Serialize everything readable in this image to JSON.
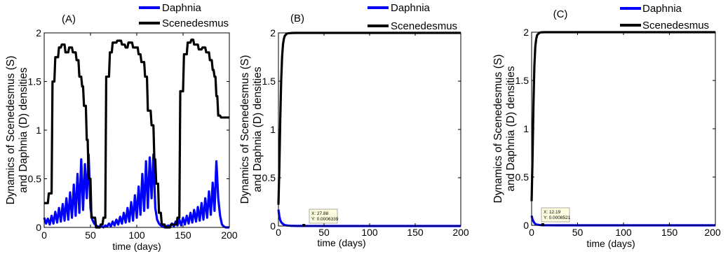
{
  "chart_data": [
    {
      "type": "line",
      "panel_label": "(A)",
      "xlabel": "time (days)",
      "ylabel_line1": "Dynamics of Scenedesmus (S)",
      "ylabel_line2": "and Daphnia (D) densities",
      "xlim": [
        0,
        200
      ],
      "ylim": [
        0,
        2
      ],
      "xticks": [
        0,
        50,
        100,
        150,
        200
      ],
      "yticks": [
        0,
        0.5,
        1,
        1.5,
        2
      ],
      "xtick_labels": [
        "0",
        "50",
        "100",
        "150",
        "200"
      ],
      "ytick_labels": [
        "0",
        "0.5",
        "1",
        "1.5",
        "2"
      ],
      "grid": false,
      "legend_position": "top-right-outside",
      "series": [
        {
          "name": "Daphnia",
          "color": "#0000ff",
          "x": [
            0,
            2,
            4,
            6,
            8,
            10,
            12,
            14,
            16,
            18,
            20,
            22,
            24,
            26,
            28,
            30,
            32,
            34,
            36,
            38,
            40,
            42,
            44,
            46,
            48,
            50,
            52,
            54,
            56,
            58,
            60,
            62,
            64,
            66,
            68,
            70,
            72,
            74,
            76,
            78,
            80,
            82,
            84,
            86,
            88,
            90,
            92,
            94,
            96,
            98,
            100,
            102,
            104,
            106,
            108,
            110,
            112,
            114,
            116,
            118,
            120,
            122,
            124,
            126,
            128,
            130,
            132,
            134,
            136,
            138,
            140,
            142,
            144,
            146,
            148,
            150,
            152,
            154,
            156,
            158,
            160,
            162,
            164,
            166,
            168,
            170,
            172,
            174,
            176,
            178,
            180,
            182,
            184,
            186,
            188,
            190,
            192,
            194,
            196,
            198,
            200
          ],
          "y": [
            0.1,
            0.04,
            0.09,
            0.03,
            0.12,
            0.04,
            0.16,
            0.05,
            0.2,
            0.06,
            0.24,
            0.07,
            0.3,
            0.08,
            0.36,
            0.1,
            0.44,
            0.12,
            0.55,
            0.15,
            0.7,
            0.18,
            0.65,
            0.3,
            0.75,
            0.2,
            0.08,
            0.04,
            0.02,
            0.01,
            0.0,
            0.01,
            0.0,
            0.02,
            0.01,
            0.04,
            0.01,
            0.06,
            0.02,
            0.08,
            0.03,
            0.11,
            0.04,
            0.15,
            0.05,
            0.2,
            0.06,
            0.26,
            0.07,
            0.33,
            0.1,
            0.42,
            0.13,
            0.55,
            0.17,
            0.68,
            0.2,
            0.72,
            0.3,
            0.75,
            0.2,
            0.08,
            0.04,
            0.02,
            0.01,
            0.0,
            0.01,
            0.02,
            0.01,
            0.04,
            0.01,
            0.06,
            0.02,
            0.08,
            0.02,
            0.1,
            0.03,
            0.12,
            0.04,
            0.15,
            0.05,
            0.18,
            0.06,
            0.21,
            0.07,
            0.25,
            0.08,
            0.3,
            0.1,
            0.37,
            0.13,
            0.46,
            0.17,
            0.68,
            0.3,
            0.12,
            0.03,
            0.01,
            0.0,
            0.0,
            0.0
          ]
        },
        {
          "name": "Scenedesmus",
          "color": "#000000",
          "x": [
            0,
            4,
            5,
            8,
            9,
            11,
            12,
            15,
            16,
            18,
            19,
            22,
            23,
            26,
            27,
            30,
            31,
            34,
            35,
            37,
            38,
            40,
            41,
            42,
            43,
            45,
            46,
            47,
            48,
            50,
            51,
            55,
            56,
            60,
            61,
            63,
            64,
            66,
            67,
            70,
            71,
            73,
            74,
            78,
            79,
            83,
            84,
            87,
            88,
            90,
            91,
            95,
            96,
            101,
            102,
            104,
            105,
            108,
            109,
            111,
            112,
            115,
            116,
            118,
            119,
            120,
            121,
            123,
            124,
            126,
            127,
            130,
            131,
            136,
            137,
            143,
            144,
            146,
            147,
            150,
            151,
            154,
            155,
            158,
            159,
            161,
            162,
            166,
            167,
            170,
            171,
            174,
            175,
            178,
            179,
            181,
            182,
            183,
            184,
            185,
            186,
            187,
            188,
            190,
            191,
            195,
            196,
            200
          ],
          "y": [
            0.25,
            0.25,
            0.35,
            0.35,
            1.5,
            1.5,
            1.75,
            1.75,
            1.85,
            1.85,
            1.88,
            1.88,
            1.8,
            1.8,
            1.85,
            1.85,
            1.8,
            1.8,
            1.72,
            1.72,
            1.55,
            1.55,
            1.45,
            1.45,
            1.25,
            1.25,
            0.9,
            0.9,
            0.5,
            0.5,
            0.1,
            0.1,
            0.0,
            0.0,
            0.03,
            0.03,
            0.1,
            0.1,
            1.55,
            1.55,
            1.8,
            1.8,
            1.9,
            1.9,
            1.92,
            1.92,
            1.88,
            1.88,
            1.85,
            1.85,
            1.9,
            1.9,
            1.85,
            1.85,
            1.78,
            1.78,
            1.7,
            1.7,
            1.55,
            1.55,
            1.2,
            1.2,
            1.05,
            1.05,
            0.7,
            0.7,
            0.45,
            0.45,
            0.15,
            0.15,
            0.03,
            0.03,
            0.0,
            0.0,
            0.03,
            0.03,
            0.1,
            0.1,
            1.4,
            1.4,
            1.78,
            1.78,
            1.9,
            1.9,
            1.93,
            1.93,
            1.88,
            1.88,
            1.83,
            1.83,
            1.85,
            1.85,
            1.8,
            1.8,
            1.72,
            1.72,
            1.62,
            1.62,
            1.55,
            1.55,
            1.35,
            1.35,
            1.15,
            1.15,
            1.13,
            1.13,
            1.13,
            1.13
          ]
        }
      ]
    },
    {
      "type": "line",
      "panel_label": "(B)",
      "xlabel": "time (days)",
      "ylabel_line1": "Dynamics of Scenedesmus (S)",
      "ylabel_line2": "and Daphnia (D) densities",
      "xlim": [
        0,
        200
      ],
      "ylim": [
        0,
        2
      ],
      "xticks": [
        0,
        50,
        100,
        150,
        200
      ],
      "yticks": [
        0,
        0.5,
        1,
        1.5,
        2
      ],
      "xtick_labels": [
        "0",
        "50",
        "100",
        "150",
        "200"
      ],
      "ytick_labels": [
        "0",
        "0.5",
        "1",
        "1.5",
        "2"
      ],
      "grid": false,
      "legend_position": "top-right-outside",
      "datatip": {
        "x": 27.88,
        "y": 0.0006339,
        "text_x": "X: 27.88",
        "text_y": "Y: 0.0006339"
      },
      "series": [
        {
          "name": "Daphnia",
          "color": "#0000ff",
          "x": [
            0,
            1,
            2,
            3,
            4,
            5,
            6,
            7,
            8,
            10,
            13,
            16,
            20,
            25,
            30,
            40,
            60,
            100,
            150,
            200
          ],
          "y": [
            0.17,
            0.1,
            0.06,
            0.04,
            0.03,
            0.02,
            0.015,
            0.01,
            0.008,
            0.005,
            0.003,
            0.002,
            0.001,
            0.0007,
            0.0005,
            0.0003,
            0.0001,
            0.0,
            0.0,
            0.0
          ]
        },
        {
          "name": "Scenedesmus",
          "color": "#000000",
          "x": [
            0,
            1,
            2,
            3,
            4,
            5,
            6,
            7,
            8,
            9,
            10,
            12,
            15,
            20,
            30,
            50,
            100,
            150,
            200
          ],
          "y": [
            0.22,
            0.6,
            1.1,
            1.5,
            1.75,
            1.88,
            1.94,
            1.97,
            1.98,
            1.99,
            1.995,
            1.997,
            1.999,
            2.0,
            2.0,
            2.0,
            2.0,
            2.0,
            2.0
          ]
        }
      ]
    },
    {
      "type": "line",
      "panel_label": "(C)",
      "xlabel": "time (days)",
      "ylabel_line1": "Dynamics of Scenedesmus (S)",
      "ylabel_line2": "and Daphnia (D) densities",
      "xlim": [
        0,
        200
      ],
      "ylim": [
        0,
        2
      ],
      "xticks": [
        0,
        50,
        100,
        150,
        200
      ],
      "yticks": [
        0,
        0.5,
        1,
        1.5,
        2
      ],
      "xtick_labels": [
        "0",
        "50",
        "100",
        "150",
        "200"
      ],
      "ytick_labels": [
        "0",
        "0.5",
        "1",
        "1.5",
        "2"
      ],
      "grid": false,
      "legend_position": "top-right-outside",
      "datatip": {
        "x": 12.19,
        "y": 0.0008521,
        "text_x": "X: 12.19",
        "text_y": "Y: 0.0008521"
      },
      "series": [
        {
          "name": "Daphnia",
          "color": "#0000ff",
          "x": [
            0,
            1,
            2,
            3,
            4,
            5,
            6,
            8,
            10,
            12,
            15,
            20,
            30,
            50,
            100,
            150,
            200
          ],
          "y": [
            0.1,
            0.06,
            0.04,
            0.025,
            0.015,
            0.01,
            0.007,
            0.004,
            0.002,
            0.0009,
            0.0005,
            0.0003,
            0.0001,
            0.0,
            0.0,
            0.0,
            0.0
          ]
        },
        {
          "name": "Scenedesmus",
          "color": "#000000",
          "x": [
            0,
            1,
            2,
            3,
            4,
            5,
            6,
            7,
            8,
            9,
            10,
            12,
            15,
            20,
            30,
            50,
            100,
            150,
            200
          ],
          "y": [
            0.25,
            0.7,
            1.25,
            1.65,
            1.85,
            1.93,
            1.97,
            1.98,
            1.99,
            1.995,
            1.998,
            1.999,
            2.0,
            2.0,
            2.0,
            2.0,
            2.0,
            2.0,
            2.0
          ]
        }
      ]
    }
  ]
}
